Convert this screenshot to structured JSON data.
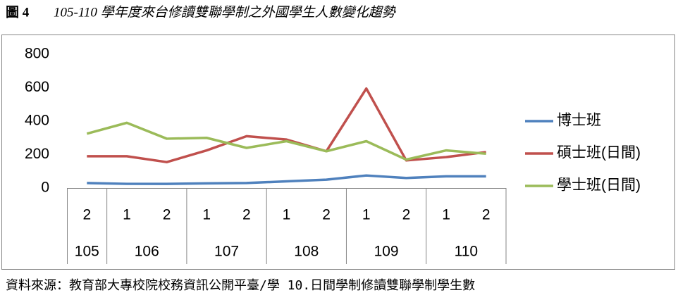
{
  "chart_data": {
    "type": "line",
    "title_label": "圖 4",
    "title": "105-110 學年度來台修讀雙聯學制之外國學生人數變化趨勢",
    "source": "資料來源：教育部大專校院校務資訊公開平臺/學 10.日間學制修讀雙聯學制學生數",
    "groups": [
      {
        "label": "105",
        "categories": [
          "2"
        ]
      },
      {
        "label": "106",
        "categories": [
          "1",
          "2"
        ]
      },
      {
        "label": "107",
        "categories": [
          "1",
          "2"
        ]
      },
      {
        "label": "108",
        "categories": [
          "1",
          "2"
        ]
      },
      {
        "label": "109",
        "categories": [
          "1",
          "2"
        ]
      },
      {
        "label": "110",
        "categories": [
          "1",
          "2"
        ]
      }
    ],
    "series": [
      {
        "name": "博士班",
        "color": "#4f81bd",
        "values": [
          30,
          25,
          25,
          28,
          30,
          40,
          50,
          75,
          60,
          70,
          70
        ]
      },
      {
        "name": "碩士班(日間)",
        "color": "#c0504d",
        "values": [
          190,
          190,
          155,
          225,
          310,
          290,
          220,
          595,
          165,
          185,
          215
        ]
      },
      {
        "name": "學士班(日間)",
        "color": "#9bbb59",
        "values": [
          325,
          390,
          295,
          300,
          240,
          280,
          220,
          280,
          170,
          225,
          205
        ]
      }
    ],
    "ylim": [
      0,
      800
    ],
    "yticks": [
      0,
      200,
      400,
      600,
      800
    ],
    "grid": false,
    "legend": "right"
  }
}
